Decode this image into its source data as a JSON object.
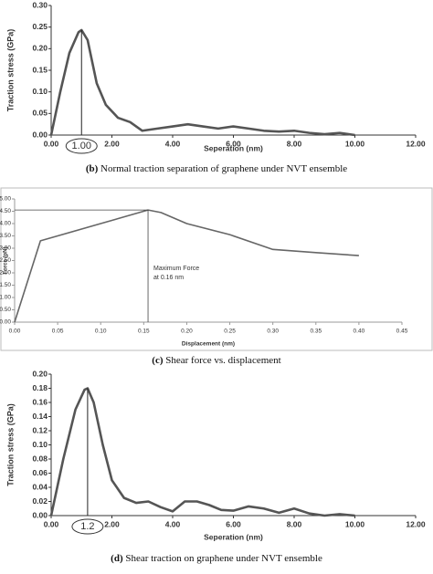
{
  "chart_data": [
    {
      "type": "line",
      "ylabel": "Traction stress (GPa)",
      "xlabel": "Seperation (nm)",
      "caption_label": "(b)",
      "caption": "Normal traction separation of graphene under NVT ensemble",
      "color": "#555555",
      "x": [
        0,
        0.3,
        0.6,
        0.9,
        1.0,
        1.2,
        1.5,
        1.8,
        2.2,
        2.6,
        3.0,
        3.5,
        4.0,
        4.5,
        5.0,
        5.5,
        6.0,
        6.5,
        7.0,
        7.5,
        8.0,
        8.5,
        9.0,
        9.5,
        10.0
      ],
      "values": [
        0,
        0.1,
        0.19,
        0.238,
        0.243,
        0.22,
        0.12,
        0.07,
        0.04,
        0.03,
        0.01,
        0.015,
        0.02,
        0.025,
        0.02,
        0.015,
        0.02,
        0.015,
        0.01,
        0.008,
        0.01,
        0.005,
        0.002,
        0.005,
        0
      ],
      "xlim": [
        0,
        12
      ],
      "ylim": [
        0,
        0.3
      ],
      "xticks": [
        {
          "value": 0,
          "label": "0.00"
        },
        {
          "value": 2,
          "label": "2.00"
        },
        {
          "value": 4,
          "label": "4.00"
        },
        {
          "value": 6,
          "label": "6.00"
        },
        {
          "value": 8,
          "label": "8.00"
        },
        {
          "value": 10,
          "label": "10.00"
        },
        {
          "value": 12,
          "label": "12.00"
        }
      ],
      "yticks": [
        {
          "value": 0,
          "label": "0.00"
        },
        {
          "value": 0.05,
          "label": "0.05"
        },
        {
          "value": 0.1,
          "label": "0.10"
        },
        {
          "value": 0.15,
          "label": "0.15"
        },
        {
          "value": 0.2,
          "label": "0.20"
        },
        {
          "value": 0.25,
          "label": "0.25"
        },
        {
          "value": 0.3,
          "label": "0.30"
        }
      ],
      "marked_x": {
        "value": 1.0,
        "label": "1.00"
      }
    },
    {
      "type": "line",
      "ylabel": "Force (pN)",
      "xlabel": "Displacement (nm)",
      "caption_label": "(c)",
      "caption": "Shear force vs. displacement",
      "color": "#666666",
      "x": [
        0,
        0.03,
        0.05,
        0.1,
        0.155,
        0.17,
        0.2,
        0.25,
        0.3,
        0.35,
        0.4
      ],
      "values": [
        0,
        3.3,
        3.5,
        4.0,
        4.55,
        4.45,
        4.0,
        3.55,
        2.95,
        2.82,
        2.7
      ],
      "xlim": [
        0,
        0.45
      ],
      "ylim": [
        0,
        5
      ],
      "xticks": [
        {
          "value": 0,
          "label": "0.00"
        },
        {
          "value": 0.05,
          "label": "0.05"
        },
        {
          "value": 0.1,
          "label": "0.10"
        },
        {
          "value": 0.15,
          "label": "0.15"
        },
        {
          "value": 0.2,
          "label": "0.20"
        },
        {
          "value": 0.25,
          "label": "0.25"
        },
        {
          "value": 0.3,
          "label": "0.30"
        },
        {
          "value": 0.35,
          "label": "0.35"
        },
        {
          "value": 0.4,
          "label": "0.40"
        },
        {
          "value": 0.45,
          "label": "0.45"
        }
      ],
      "yticks": [
        {
          "value": 0,
          "label": "0.00"
        },
        {
          "value": 0.5,
          "label": "0.50"
        },
        {
          "value": 1,
          "label": "1.00"
        },
        {
          "value": 1.5,
          "label": "1.50"
        },
        {
          "value": 2,
          "label": "2.00"
        },
        {
          "value": 2.5,
          "label": "2.50"
        },
        {
          "value": 3,
          "label": "3.00"
        },
        {
          "value": 3.5,
          "label": "3.50"
        },
        {
          "value": 4,
          "label": "4.00"
        },
        {
          "value": 4.5,
          "label": "4.50"
        },
        {
          "value": 5,
          "label": "5.00"
        }
      ],
      "annotation": [
        "Maximum Force",
        "at 0.16 nm"
      ]
    },
    {
      "type": "line",
      "ylabel": "Traction stress (GPa)",
      "xlabel": "Seperation (nm)",
      "caption_label": "(d)",
      "caption": "Shear traction on graphene under NVT ensemble",
      "color": "#555555",
      "x": [
        0,
        0.4,
        0.8,
        1.1,
        1.2,
        1.4,
        1.7,
        2.0,
        2.4,
        2.8,
        3.2,
        3.6,
        4.0,
        4.4,
        4.8,
        5.2,
        5.6,
        6.0,
        6.5,
        7.0,
        7.5,
        8.0,
        8.5,
        9.0,
        9.5,
        10.0
      ],
      "values": [
        0,
        0.08,
        0.15,
        0.178,
        0.18,
        0.16,
        0.1,
        0.05,
        0.025,
        0.018,
        0.02,
        0.012,
        0.006,
        0.02,
        0.02,
        0.015,
        0.008,
        0.007,
        0.013,
        0.01,
        0.004,
        0.01,
        0.003,
        0,
        0.002,
        0
      ],
      "xlim": [
        0,
        12
      ],
      "ylim": [
        0,
        0.2
      ],
      "xticks": [
        {
          "value": 0,
          "label": "0.00"
        },
        {
          "value": 2,
          "label": "2.00"
        },
        {
          "value": 4,
          "label": "4.00"
        },
        {
          "value": 6,
          "label": "6.00"
        },
        {
          "value": 8,
          "label": "8.00"
        },
        {
          "value": 10,
          "label": "10.00"
        },
        {
          "value": 12,
          "label": "12.00"
        }
      ],
      "yticks": [
        {
          "value": 0,
          "label": "0.00"
        },
        {
          "value": 0.02,
          "label": "0.02"
        },
        {
          "value": 0.04,
          "label": "0.04"
        },
        {
          "value": 0.06,
          "label": "0.06"
        },
        {
          "value": 0.08,
          "label": "0.08"
        },
        {
          "value": 0.1,
          "label": "0.10"
        },
        {
          "value": 0.12,
          "label": "0.12"
        },
        {
          "value": 0.14,
          "label": "0.14"
        },
        {
          "value": 0.16,
          "label": "0.16"
        },
        {
          "value": 0.18,
          "label": "0.18"
        },
        {
          "value": 0.2,
          "label": "0.20"
        }
      ],
      "marked_x": {
        "value": 1.2,
        "label": "1.2"
      }
    }
  ]
}
